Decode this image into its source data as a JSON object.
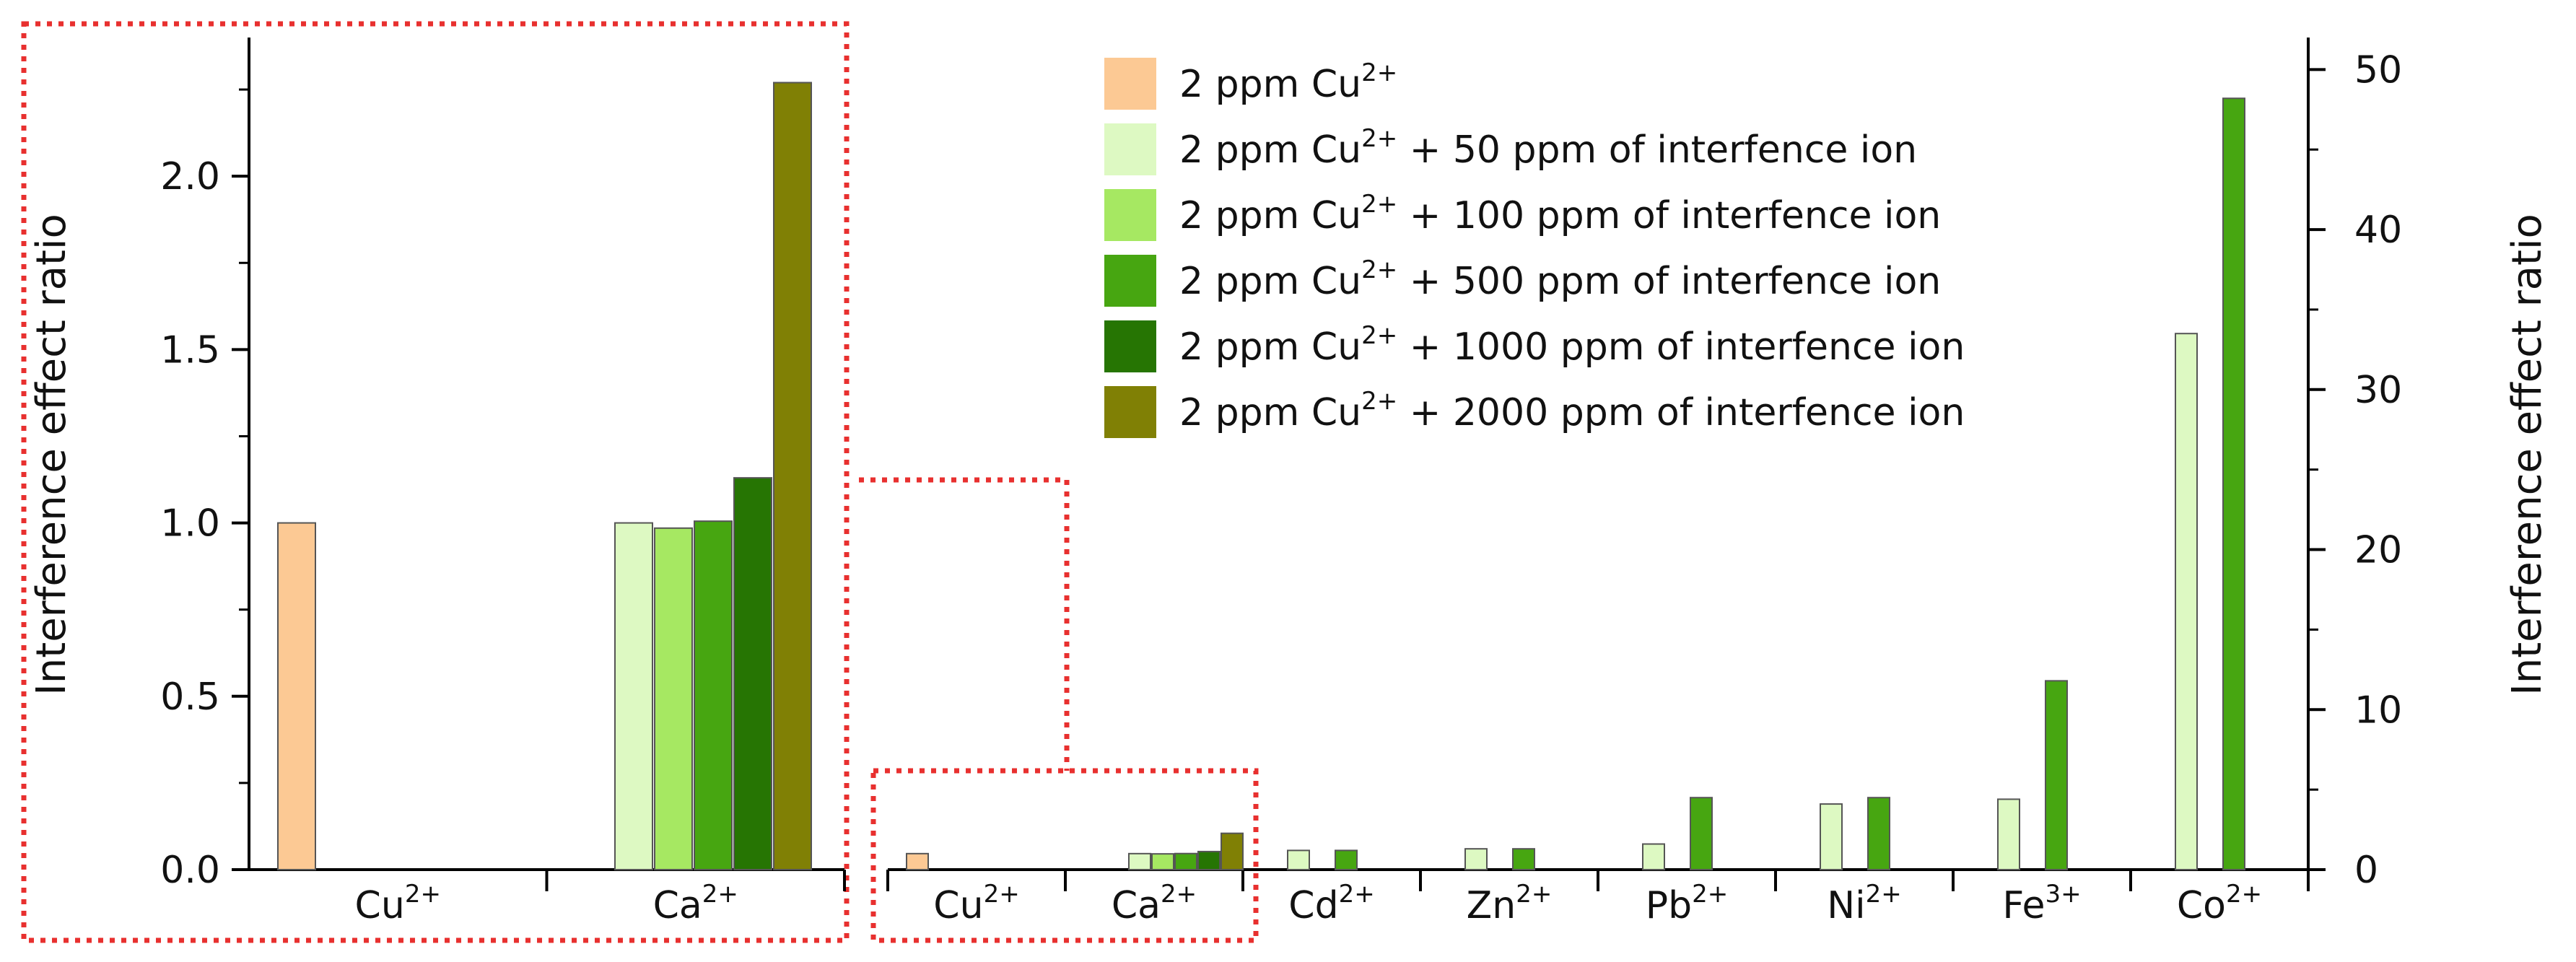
{
  "chart_data": [
    {
      "type": "bar",
      "title": "",
      "ylabel": "Interference effect ratio",
      "ylim": [
        0,
        2.4
      ],
      "y_ticks": [
        {
          "value": 0.0,
          "label": "0.0"
        },
        {
          "value": 0.5,
          "label": "0.5"
        },
        {
          "value": 1.0,
          "label": "1.0"
        },
        {
          "value": 1.5,
          "label": "1.5"
        },
        {
          "value": 2.0,
          "label": "2.0"
        }
      ],
      "categories": [
        {
          "ion": "Cu",
          "charge": "2+"
        },
        {
          "ion": "Ca",
          "charge": "2+"
        }
      ],
      "series": [
        {
          "values": [
            1.0,
            null
          ]
        },
        {
          "values": [
            null,
            1.0
          ]
        },
        {
          "values": [
            null,
            0.985
          ]
        },
        {
          "values": [
            null,
            1.005
          ]
        },
        {
          "values": [
            null,
            1.13
          ]
        },
        {
          "values": [
            null,
            2.27
          ]
        }
      ]
    },
    {
      "type": "bar",
      "title": "",
      "ylabel": "Interference effect ratio",
      "ylim": [
        0,
        52
      ],
      "y_ticks": [
        {
          "value": 0,
          "label": "0"
        },
        {
          "value": 10,
          "label": "10"
        },
        {
          "value": 20,
          "label": "20"
        },
        {
          "value": 30,
          "label": "30"
        },
        {
          "value": 40,
          "label": "40"
        },
        {
          "value": 50,
          "label": "50"
        }
      ],
      "categories": [
        {
          "ion": "Cu",
          "charge": "2+"
        },
        {
          "ion": "Ca",
          "charge": "2+"
        },
        {
          "ion": "Cd",
          "charge": "2+"
        },
        {
          "ion": "Zn",
          "charge": "2+"
        },
        {
          "ion": "Pb",
          "charge": "2+"
        },
        {
          "ion": "Ni",
          "charge": "2+"
        },
        {
          "ion": "Fe",
          "charge": "3+"
        },
        {
          "ion": "Co",
          "charge": "2+"
        }
      ],
      "series": [
        {
          "values": [
            1.0,
            null,
            null,
            null,
            null,
            null,
            null,
            null
          ]
        },
        {
          "values": [
            null,
            1.0,
            1.2,
            1.3,
            1.6,
            4.1,
            4.4,
            33.5
          ]
        },
        {
          "values": [
            null,
            0.985,
            null,
            null,
            null,
            null,
            null,
            null
          ]
        },
        {
          "values": [
            null,
            1.005,
            1.2,
            1.3,
            4.5,
            4.5,
            11.8,
            48.2
          ]
        },
        {
          "values": [
            null,
            1.13,
            null,
            null,
            null,
            null,
            null,
            null
          ]
        },
        {
          "values": [
            null,
            2.27,
            null,
            null,
            null,
            null,
            null,
            null
          ]
        }
      ]
    }
  ],
  "legend": {
    "position": "top-center",
    "items": [
      {
        "prefix": "2 ppm Cu",
        "sup": "2+",
        "suffix": "",
        "color": "#FCC994"
      },
      {
        "prefix": "2 ppm Cu",
        "sup": "2+",
        "suffix": " + 50 ppm of interfence ion",
        "color": "#DDF9C2"
      },
      {
        "prefix": "2 ppm Cu",
        "sup": "2+",
        "suffix": " + 100 ppm of interfence ion",
        "color": "#A6E862"
      },
      {
        "prefix": "2 ppm Cu",
        "sup": "2+",
        "suffix": " + 500 ppm of interfence ion",
        "color": "#47A611"
      },
      {
        "prefix": "2 ppm Cu",
        "sup": "2+",
        "suffix": " + 1000 ppm of interfence ion",
        "color": "#267503"
      },
      {
        "prefix": "2 ppm Cu",
        "sup": "2+",
        "suffix": " + 2000 ppm of interfence ion",
        "color": "#808005"
      }
    ]
  },
  "highlight_color": "#E8302F"
}
